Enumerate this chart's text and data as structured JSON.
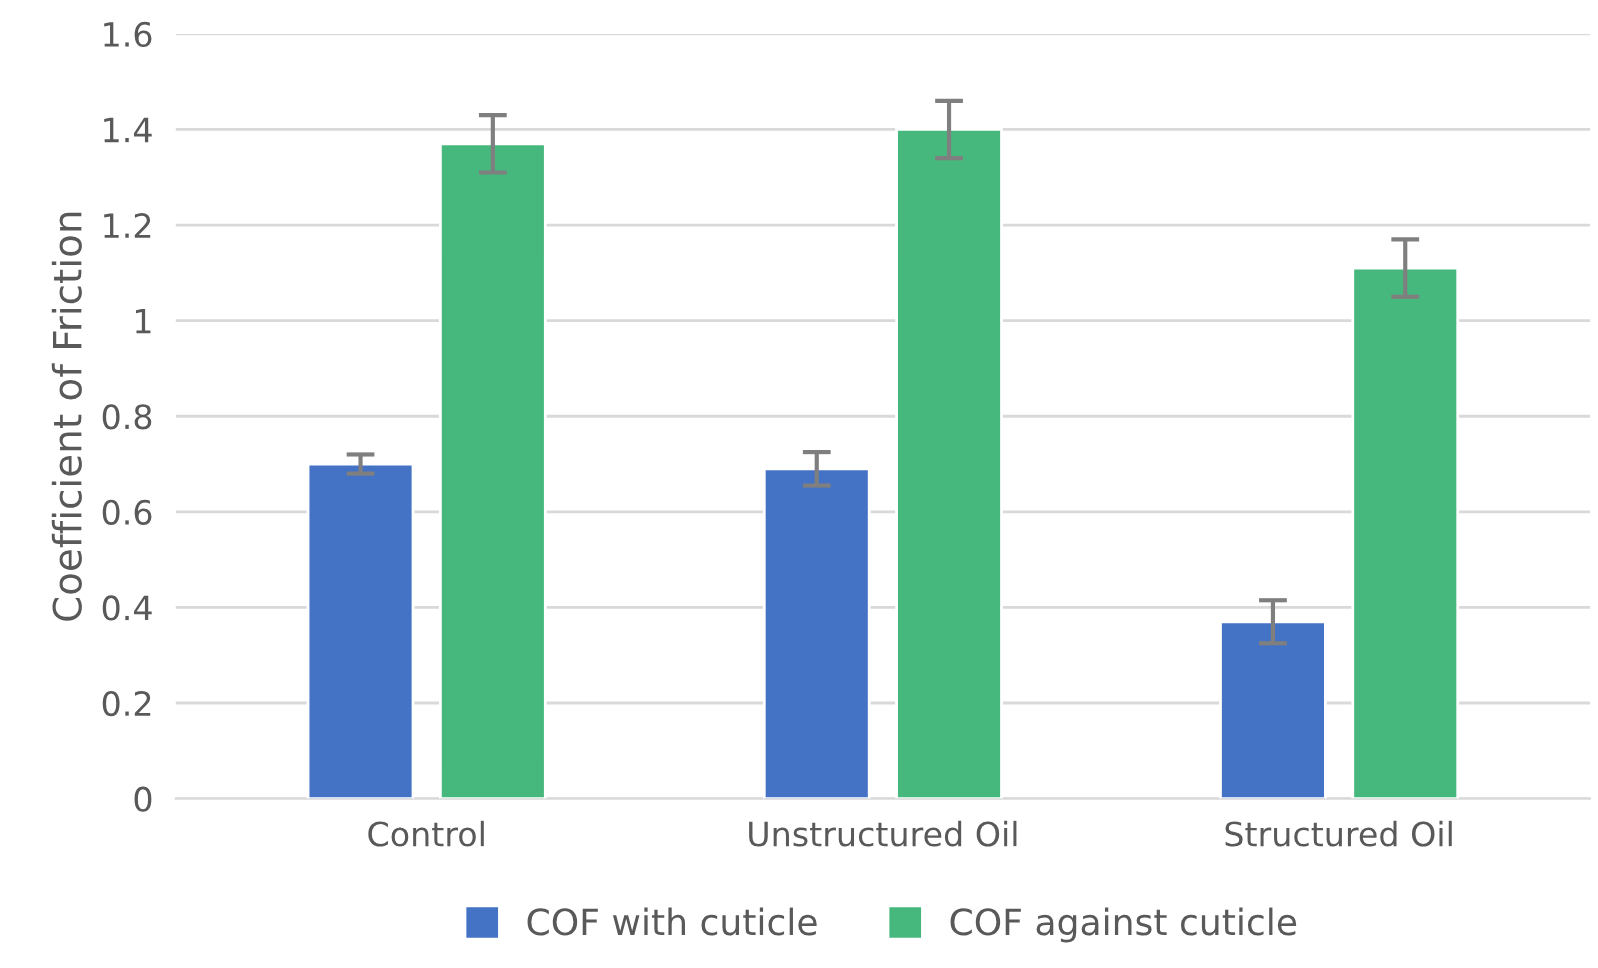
{
  "chart_data": {
    "type": "bar",
    "ylabel": "Coefficient of Friction",
    "categories": [
      "Control",
      "Unstructured Oil",
      "Structured Oil"
    ],
    "series": [
      {
        "name": "COF with cuticle",
        "color": "#4472c4",
        "values": [
          0.7,
          0.69,
          0.37
        ],
        "errors": [
          0.02,
          0.035,
          0.045
        ]
      },
      {
        "name": "COF against cuticle",
        "color": "#47b87d",
        "values": [
          1.37,
          1.4,
          1.11
        ],
        "errors": [
          0.06,
          0.06,
          0.06
        ]
      }
    ],
    "ylim": [
      0,
      1.6
    ],
    "yticks": [
      0,
      0.2,
      0.4,
      0.6,
      0.8,
      1,
      1.2,
      1.4,
      1.6
    ],
    "grid": "y",
    "legend": "bottom"
  }
}
